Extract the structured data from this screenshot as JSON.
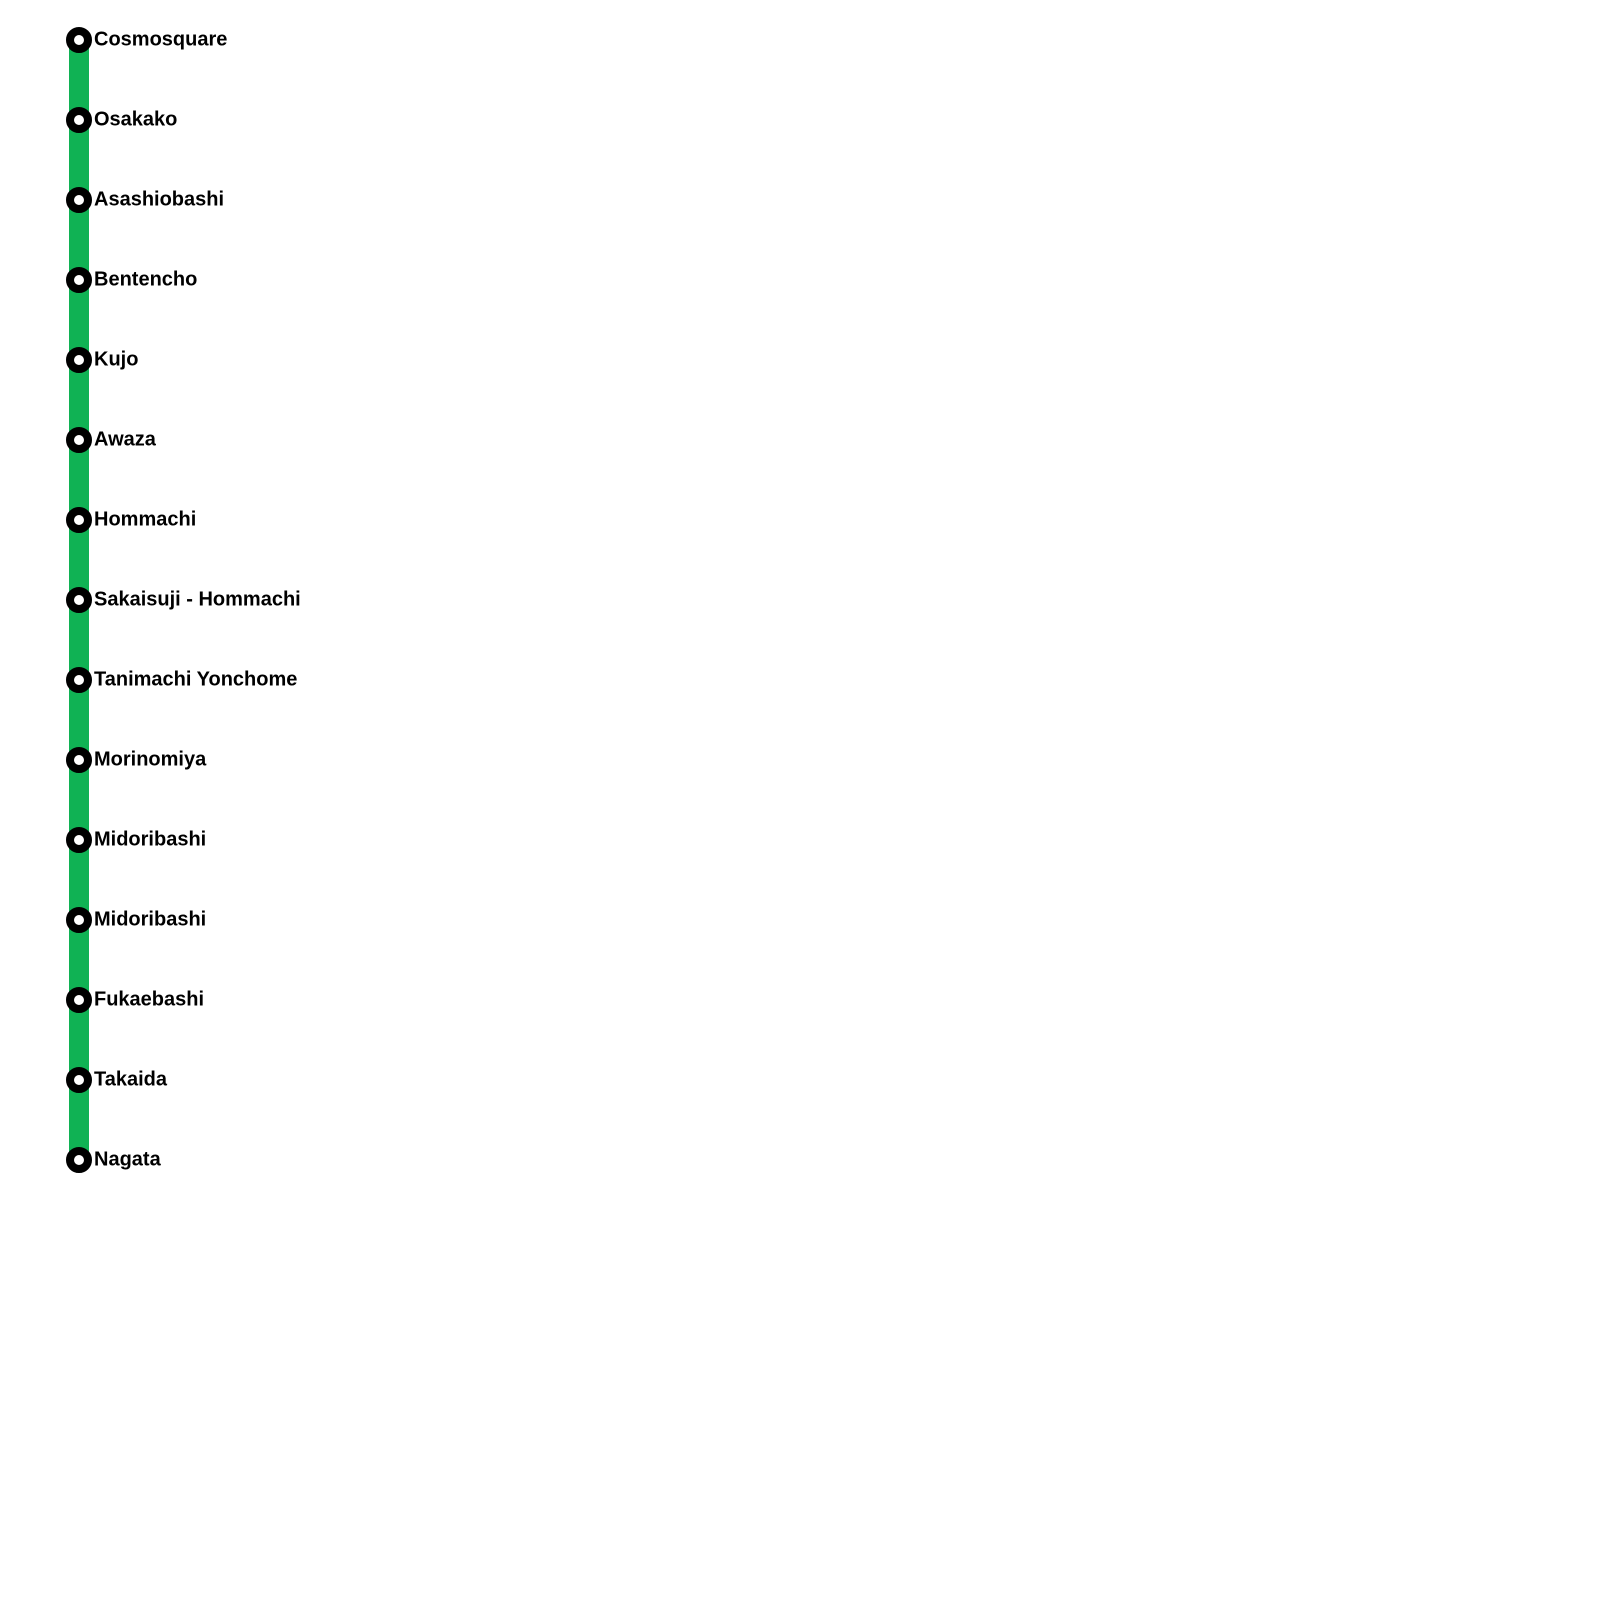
{
  "map": {
    "line_color": "#10b254",
    "marker_ring_color": "#000000",
    "marker_fill_color": "#ffffff",
    "label_color": "#000000",
    "background_color": "#ffffff",
    "stations": [
      {
        "label": "Cosmosquare"
      },
      {
        "label": "Osakako"
      },
      {
        "label": "Asashiobashi"
      },
      {
        "label": "Bentencho"
      },
      {
        "label": "Kujo"
      },
      {
        "label": "Awaza"
      },
      {
        "label": "Hommachi"
      },
      {
        "label": "Sakaisuji - Hommachi"
      },
      {
        "label": "Tanimachi Yonchome"
      },
      {
        "label": "Morinomiya"
      },
      {
        "label": "Midoribashi"
      },
      {
        "label": "Midoribashi"
      },
      {
        "label": "Fukaebashi"
      },
      {
        "label": "Takaida"
      },
      {
        "label": "Nagata"
      }
    ]
  }
}
